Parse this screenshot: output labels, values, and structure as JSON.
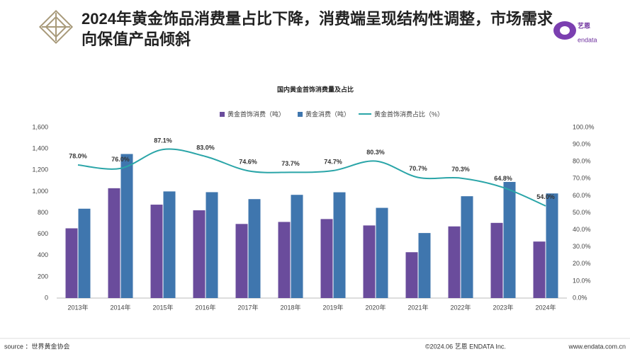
{
  "header": {
    "title": "2024年黄金饰品消费量占比下降，消费端呈现结构性调整，市场需求向保值产品倾斜"
  },
  "logo": {
    "name": "艺恩",
    "subtext": "endata"
  },
  "chart_data": {
    "type": "bar-line",
    "title": "国内黄金首饰消费量及占比",
    "categories": [
      "2013年",
      "2014年",
      "2015年",
      "2016年",
      "2017年",
      "2018年",
      "2019年",
      "2020年",
      "2021年",
      "2022年",
      "2023年",
      "2024年"
    ],
    "series": [
      {
        "name": "黄金首饰消费（吨）",
        "type": "bar",
        "color": "#6a4c9c",
        "values": [
          654,
          1030,
          876,
          823,
          695,
          714,
          741,
          681,
          430,
          672,
          705,
          530
        ]
      },
      {
        "name": "黄金消费（吨）",
        "type": "bar",
        "color": "#3f76ae",
        "values": [
          838,
          1351,
          1000,
          993,
          928,
          968,
          992,
          846,
          610,
          955,
          1089,
          981
        ]
      },
      {
        "name": "黄金首饰消费占比（%）",
        "type": "line",
        "axis": "y2",
        "color": "#2aa5a8",
        "values": [
          78.0,
          76.0,
          87.1,
          83.0,
          74.6,
          73.7,
          74.7,
          80.3,
          70.7,
          70.3,
          64.8,
          54.0
        ],
        "value_labels": [
          "78.0%",
          "76.0%",
          "87.1%",
          "83.0%",
          "74.6%",
          "73.7%",
          "74.7%",
          "80.3%",
          "70.7%",
          "70.3%",
          "64.8%",
          "54.0%"
        ]
      }
    ],
    "ylim": [
      0,
      1600
    ],
    "yticks": [
      0,
      200,
      400,
      600,
      800,
      {
        "value": 1000,
        "label": "1,000"
      },
      {
        "value": 1200,
        "label": "1,200"
      },
      {
        "value": 1400,
        "label": "1,400"
      },
      {
        "value": 1600,
        "label": "1,600"
      }
    ],
    "y2lim": [
      0,
      100
    ],
    "y2ticks": [
      {
        "value": 0,
        "label": "0.0%"
      },
      {
        "value": 10,
        "label": "10.0%"
      },
      {
        "value": 20,
        "label": "20.0%"
      },
      {
        "value": 30,
        "label": "30.0%"
      },
      {
        "value": 40,
        "label": "40.0%"
      },
      {
        "value": 50,
        "label": "50.0%"
      },
      {
        "value": 60,
        "label": "60.0%"
      },
      {
        "value": 70,
        "label": "70.0%"
      },
      {
        "value": 80,
        "label": "80.0%"
      },
      {
        "value": 90,
        "label": "90.0%"
      },
      {
        "value": 100,
        "label": "100.0%"
      }
    ],
    "legend": "top"
  },
  "footer": {
    "source": "source ：世界黄金协会",
    "copyright": "©2024.06  艺恩 ENDATA Inc.",
    "website": "www.endata.com.cn"
  }
}
